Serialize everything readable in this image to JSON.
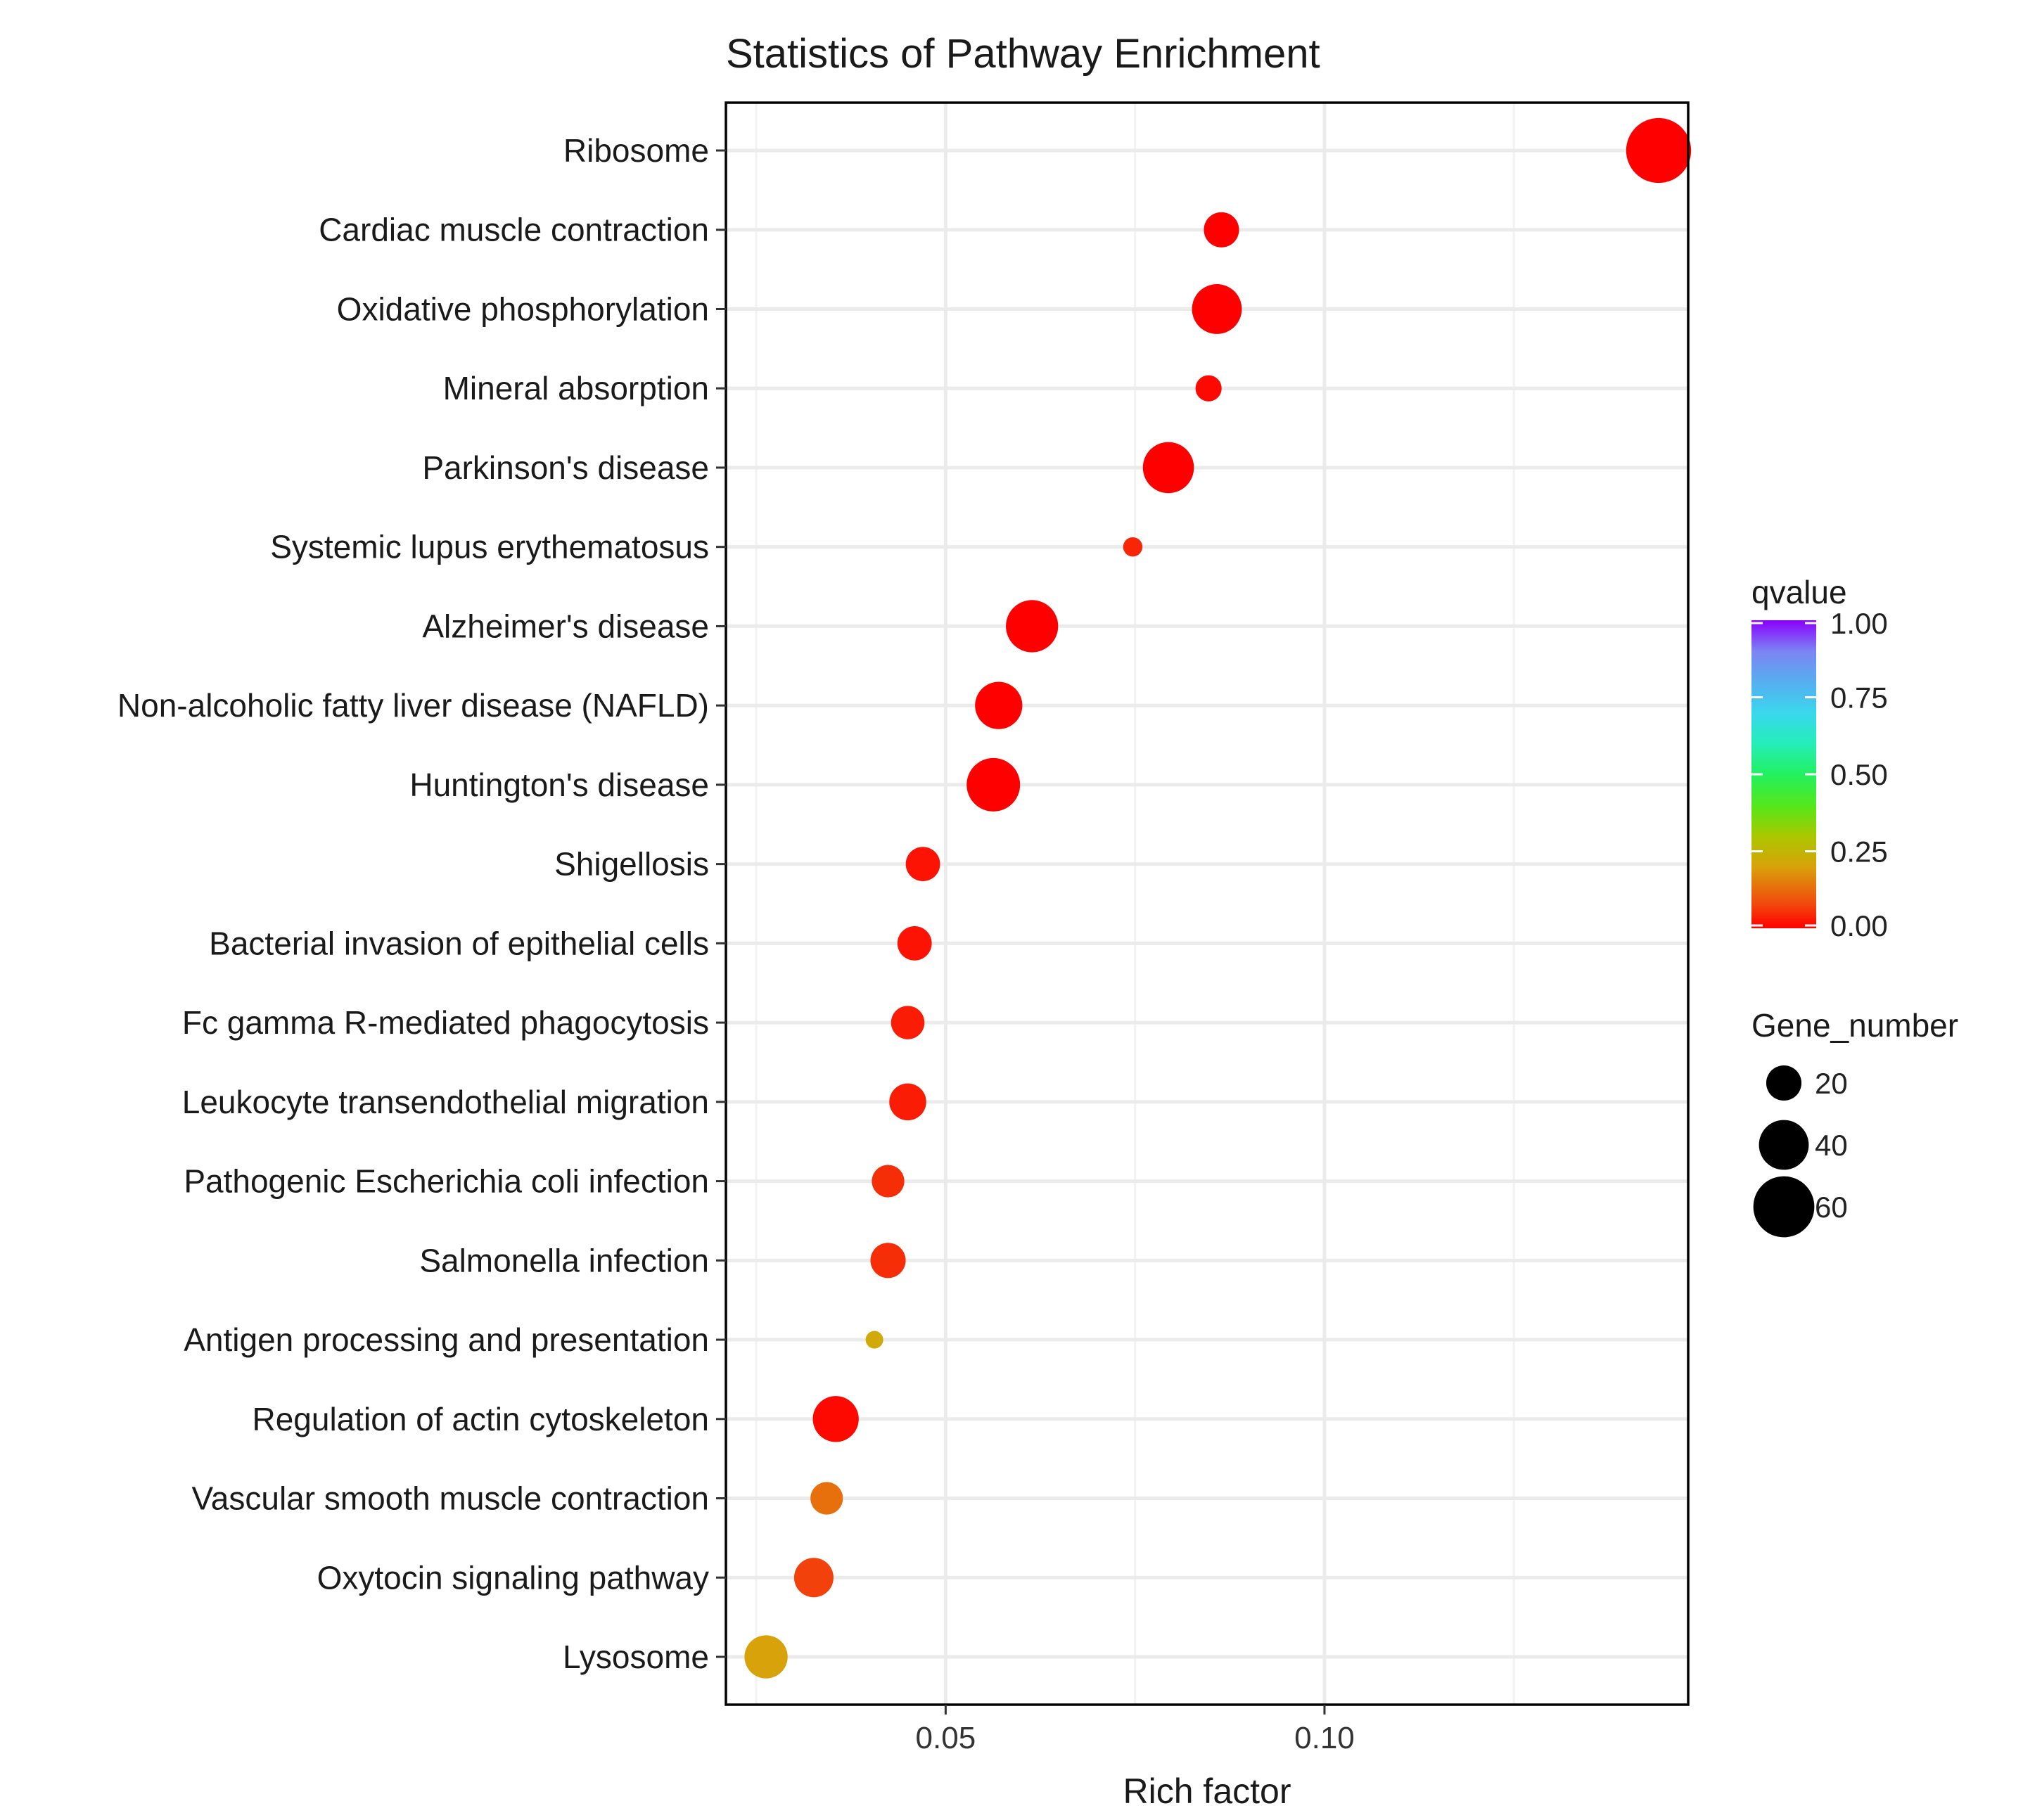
{
  "chart_data": {
    "type": "scatter",
    "title": "Statistics of Pathway Enrichment",
    "xlabel": "Rich factor",
    "ylabel": "",
    "xlim": [
      0.021,
      0.148
    ],
    "x_ticks": [
      0.05,
      0.1
    ],
    "x_tick_labels": [
      "0.05",
      "0.10"
    ],
    "grid": true,
    "points": [
      {
        "pathway": "Ribosome",
        "rich_factor": 0.1441,
        "gene_number": 68,
        "qvalue": 0.0
      },
      {
        "pathway": "Cardiac muscle contraction",
        "rich_factor": 0.0864,
        "gene_number": 20,
        "qvalue": 0.0
      },
      {
        "pathway": "Oxidative phosphorylation",
        "rich_factor": 0.0858,
        "gene_number": 40,
        "qvalue": 0.0
      },
      {
        "pathway": "Mineral absorption",
        "rich_factor": 0.0847,
        "gene_number": 11,
        "qvalue": 0.01
      },
      {
        "pathway": "Parkinson's disease",
        "rich_factor": 0.0794,
        "gene_number": 42,
        "qvalue": 0.0
      },
      {
        "pathway": "Systemic lupus erythematosus",
        "rich_factor": 0.0747,
        "gene_number": 6,
        "qvalue": 0.04
      },
      {
        "pathway": "Alzheimer's disease",
        "rich_factor": 0.0614,
        "gene_number": 44,
        "qvalue": 0.0
      },
      {
        "pathway": "Non-alcoholic fatty liver disease (NAFLD)",
        "rich_factor": 0.057,
        "gene_number": 36,
        "qvalue": 0.0
      },
      {
        "pathway": "Huntington's disease",
        "rich_factor": 0.0563,
        "gene_number": 46,
        "qvalue": 0.0
      },
      {
        "pathway": "Shigellosis",
        "rich_factor": 0.047,
        "gene_number": 19,
        "qvalue": 0.02
      },
      {
        "pathway": "Bacterial invasion of epithelial cells",
        "rich_factor": 0.0459,
        "gene_number": 19,
        "qvalue": 0.02
      },
      {
        "pathway": "Fc gamma R-mediated phagocytosis",
        "rich_factor": 0.045,
        "gene_number": 18,
        "qvalue": 0.03
      },
      {
        "pathway": "Leukocyte transendothelial migration",
        "rich_factor": 0.045,
        "gene_number": 22,
        "qvalue": 0.03
      },
      {
        "pathway": "Pathogenic Escherichia coli infection",
        "rich_factor": 0.0424,
        "gene_number": 17,
        "qvalue": 0.05
      },
      {
        "pathway": "Salmonella infection",
        "rich_factor": 0.0424,
        "gene_number": 20,
        "qvalue": 0.05
      },
      {
        "pathway": "Antigen processing and presentation",
        "rich_factor": 0.0406,
        "gene_number": 5,
        "qvalue": 0.22
      },
      {
        "pathway": "Regulation of actin cytoskeleton",
        "rich_factor": 0.0355,
        "gene_number": 34,
        "qvalue": 0.01
      },
      {
        "pathway": "Vascular smooth muscle contraction",
        "rich_factor": 0.0343,
        "gene_number": 17,
        "qvalue": 0.13
      },
      {
        "pathway": "Oxytocin signaling pathway",
        "rich_factor": 0.0326,
        "gene_number": 25,
        "qvalue": 0.07
      },
      {
        "pathway": "Lysosome",
        "rich_factor": 0.0263,
        "gene_number": 30,
        "qvalue": 0.2
      }
    ],
    "color_legend": {
      "title": "qvalue",
      "range": [
        0.0,
        1.0
      ],
      "ticks": [
        1.0,
        0.75,
        0.5,
        0.25,
        0.0
      ],
      "tick_labels": [
        "1.00",
        "0.75",
        "0.50",
        "0.25",
        "0.00"
      ],
      "gradient": [
        {
          "stop": 0.0,
          "color": "#ff0000"
        },
        {
          "stop": 0.08,
          "color": "#f14a0d"
        },
        {
          "stop": 0.2,
          "color": "#d8a20a"
        },
        {
          "stop": 0.3,
          "color": "#a9c800"
        },
        {
          "stop": 0.4,
          "color": "#52e81c"
        },
        {
          "stop": 0.5,
          "color": "#22f060"
        },
        {
          "stop": 0.6,
          "color": "#24eeb9"
        },
        {
          "stop": 0.7,
          "color": "#3ad7ee"
        },
        {
          "stop": 0.8,
          "color": "#56aef0"
        },
        {
          "stop": 0.9,
          "color": "#7c84f2"
        },
        {
          "stop": 1.0,
          "color": "#8a00ff"
        }
      ]
    },
    "size_legend": {
      "title": "Gene_number",
      "values": [
        20,
        40,
        60
      ],
      "labels": [
        "20",
        "40",
        "60"
      ],
      "color": "#000000"
    }
  }
}
